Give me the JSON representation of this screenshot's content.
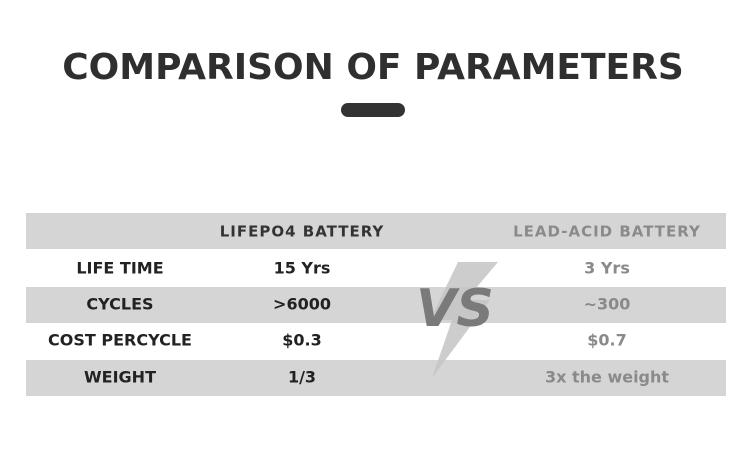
{
  "title": "COMPARISON OF PARAMETERS",
  "table": {
    "header": [
      "LIFEPO4 BATTERY",
      "LEAD-ACID BATTERY"
    ],
    "rows": [
      [
        "LIFE TIME",
        "15 Yrs",
        "3 Yrs"
      ],
      [
        "CYCLES",
        ">6000",
        "~300"
      ],
      [
        "COST PERCYCLE",
        "$0.3",
        "$0.7"
      ],
      [
        "WEIGHT",
        "1/3",
        "3x the weight"
      ]
    ]
  },
  "vs_label": "VS"
}
